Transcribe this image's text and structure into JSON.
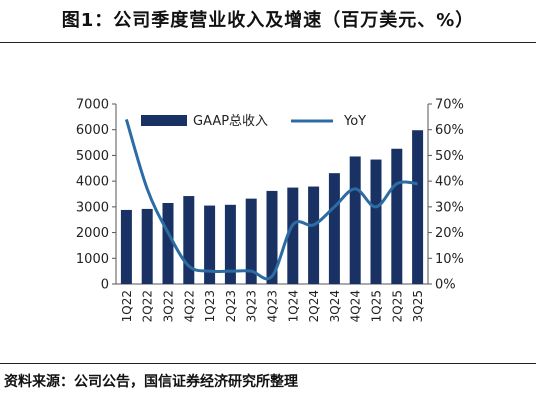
{
  "title": "图1：公司季度营业收入及增速（百万美元、%）",
  "source": "资料来源：公司公告，国信证券经济研究所整理",
  "chart_data": {
    "type": "bar",
    "categories": [
      "1Q22",
      "2Q22",
      "3Q22",
      "4Q22",
      "1Q23",
      "2Q23",
      "3Q23",
      "4Q23",
      "1Q24",
      "2Q24",
      "3Q24",
      "4Q24",
      "1Q25",
      "2Q25",
      "3Q25"
    ],
    "series": [
      {
        "name": "GAAP总收入",
        "type": "bar",
        "axis": "left",
        "color": "#1a3263",
        "values": [
          2880,
          2920,
          3150,
          3420,
          3050,
          3080,
          3320,
          3620,
          3750,
          3790,
          4310,
          4960,
          4840,
          5260,
          5980
        ]
      },
      {
        "name": "YoY",
        "type": "line",
        "axis": "right",
        "color": "#2d6ca3",
        "values": [
          64,
          37,
          20,
          7,
          5,
          5,
          5,
          3,
          23,
          23,
          30,
          37,
          30,
          39,
          39
        ]
      }
    ],
    "yaxis_left": {
      "min": 0,
      "max": 7000,
      "ticks": [
        "0",
        "1000",
        "2000",
        "3000",
        "4000",
        "5000",
        "6000",
        "7000"
      ]
    },
    "yaxis_right": {
      "min": 0,
      "max": 70,
      "ticks": [
        "0%",
        "10%",
        "20%",
        "30%",
        "40%",
        "50%",
        "60%",
        "70%"
      ]
    },
    "legend": {
      "placement": "top"
    },
    "grid": false
  }
}
